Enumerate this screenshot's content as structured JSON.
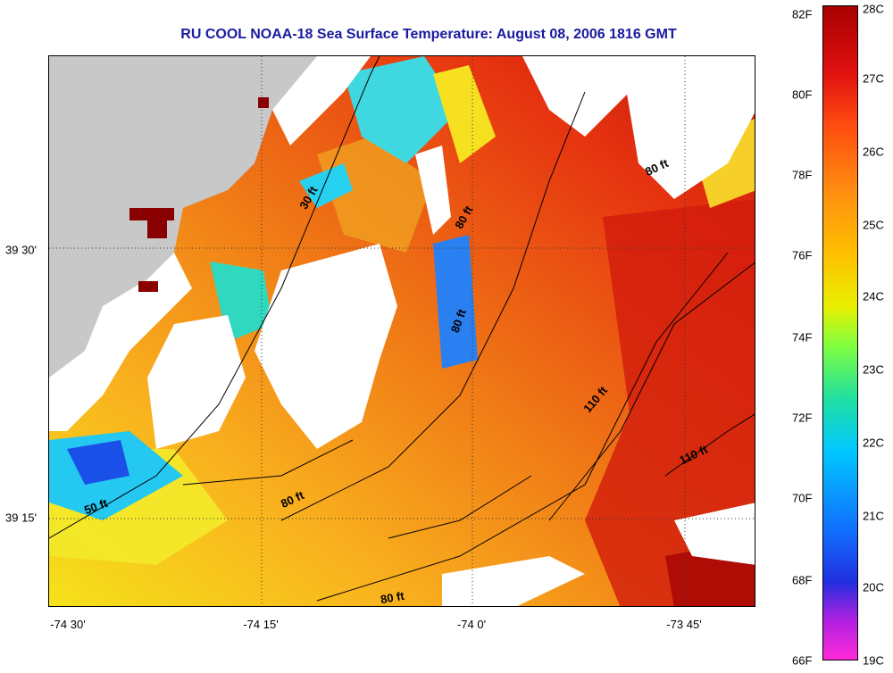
{
  "title": "RU COOL  NOAA-18  Sea Surface Temperature:  August 08, 2006 1816 GMT",
  "x_ticks": [
    "-74 30'",
    "-74 15'",
    "-74 0'",
    "-73 45'"
  ],
  "y_ticks": [
    "39 30'",
    "39 15'"
  ],
  "colorbar": {
    "fahrenheit": [
      "82F",
      "80F",
      "78F",
      "76F",
      "74F",
      "72F",
      "70F",
      "68F",
      "66F"
    ],
    "celsius": [
      "28C",
      "27C",
      "26C",
      "25C",
      "24C",
      "23C",
      "22C",
      "21C",
      "20C",
      "19C"
    ]
  },
  "contour_labels": [
    "30 ft",
    "80 ft",
    "80 ft",
    "80 ft",
    "80 ft",
    "110 ft",
    "110 ft",
    "50 ft",
    "80 ft"
  ],
  "colors": {
    "land": "#c8c8c8",
    "warm": "#e02010",
    "sst_mid": "#f08a1e",
    "cloud": "#ffffff",
    "title": "#1a1aa0"
  }
}
